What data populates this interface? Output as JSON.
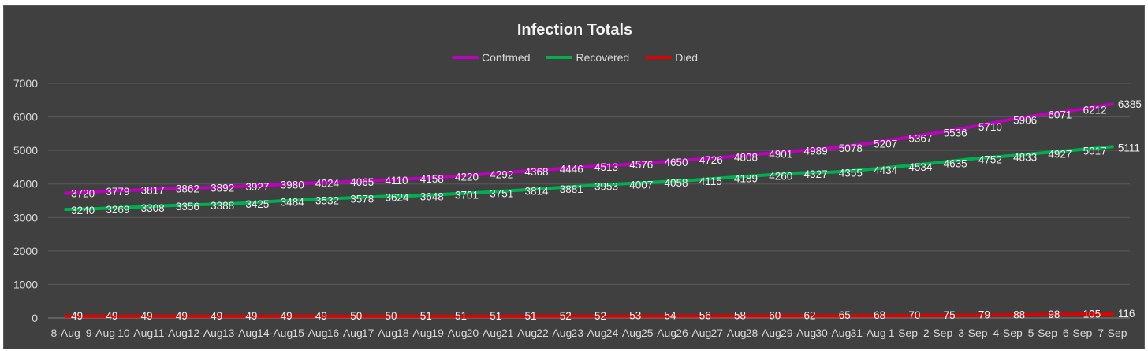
{
  "chart_data": {
    "type": "line",
    "title": "Infection Totals",
    "categories": [
      "8-Aug",
      "9-Aug",
      "10-Aug",
      "11-Aug",
      "12-Aug",
      "13-Aug",
      "14-Aug",
      "15-Aug",
      "16-Aug",
      "17-Aug",
      "18-Aug",
      "19-Aug",
      "20-Aug",
      "21-Aug",
      "22-Aug",
      "23-Aug",
      "24-Aug",
      "25-Aug",
      "26-Aug",
      "27-Aug",
      "28-Aug",
      "29-Aug",
      "30-Aug",
      "31-Aug",
      "1-Sep",
      "2-Sep",
      "3-Sep",
      "4-Sep",
      "5-Sep",
      "6-Sep",
      "7-Sep"
    ],
    "ylim": [
      0,
      7000
    ],
    "yticks": [
      0,
      1000,
      2000,
      3000,
      4000,
      5000,
      6000,
      7000
    ],
    "grid": true,
    "legend": "top",
    "series": [
      {
        "name": "Confrmed",
        "color": "#c000c0",
        "label_color": "#f0f0f0",
        "values": [
          3720,
          3779,
          3817,
          3862,
          3892,
          3927,
          3980,
          4024,
          4065,
          4110,
          4158,
          4220,
          4292,
          4368,
          4446,
          4513,
          4576,
          4650,
          4726,
          4808,
          4901,
          4989,
          5078,
          5207,
          5367,
          5536,
          5710,
          5906,
          6071,
          6212,
          6385
        ]
      },
      {
        "name": "Recovered",
        "color": "#00b050",
        "label_color": "#f0f0f0",
        "values": [
          3240,
          3269,
          3308,
          3356,
          3388,
          3425,
          3484,
          3532,
          3578,
          3624,
          3648,
          3701,
          3751,
          3814,
          3881,
          3953,
          4007,
          4058,
          4115,
          4189,
          4260,
          4327,
          4355,
          4434,
          4534,
          4635,
          4752,
          4833,
          4927,
          5017,
          5111
        ]
      },
      {
        "name": "Died",
        "color": "#e00000",
        "label_color": "#f0f0f0",
        "values": [
          49,
          49,
          49,
          49,
          49,
          49,
          49,
          49,
          50,
          50,
          51,
          51,
          51,
          51,
          52,
          52,
          53,
          54,
          56,
          58,
          60,
          62,
          65,
          68,
          70,
          75,
          79,
          88,
          98,
          105,
          116
        ]
      }
    ]
  }
}
